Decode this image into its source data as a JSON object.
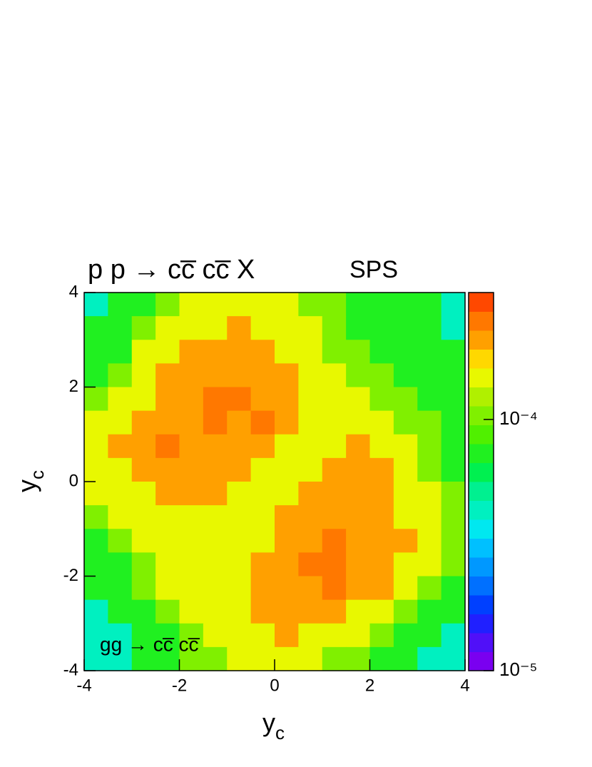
{
  "chart_data": {
    "type": "heatmap",
    "title": "p p → cc̅ cc̅ X",
    "subtitle": "SPS",
    "annotation": "gg → cc̅ cc̅",
    "x_label": {
      "base": "y",
      "sub": "c"
    },
    "y_label": {
      "base": "y",
      "sub": "c"
    },
    "xlim": [
      -4,
      4
    ],
    "ylim": [
      -4,
      4
    ],
    "xticks": [
      -4,
      -2,
      0,
      2,
      4
    ],
    "yticks": [
      -4,
      -2,
      0,
      2,
      4
    ],
    "xbins": [
      -4,
      -3.5,
      -3,
      -2.5,
      -2,
      -1.5,
      -1,
      -0.5,
      0,
      0.5,
      1,
      1.5,
      2,
      2.5,
      3,
      3.5,
      4
    ],
    "ybins": [
      4,
      3.5,
      3,
      2.5,
      2,
      1.5,
      1,
      0.5,
      0,
      -0.5,
      -1,
      -1.5,
      -2,
      -2.5,
      -3,
      -3.5,
      -4
    ],
    "zlim": [
      1e-05,
      0.00032
    ],
    "zlog": true,
    "zticks": [
      {
        "value": 1e-05,
        "label": "10⁻⁵"
      },
      {
        "value": 0.0001,
        "label": "10⁻⁴"
      }
    ],
    "palette": [
      "#7a00f0",
      "#5010f8",
      "#2020ff",
      "#0040ff",
      "#0070ff",
      "#0098ff",
      "#00c0ff",
      "#00e8f0",
      "#00f0c0",
      "#00f090",
      "#00f050",
      "#20f020",
      "#50f000",
      "#80f000",
      "#b0f000",
      "#e8f800",
      "#ffd800",
      "#ffa000",
      "#ff7800",
      "#ff4800"
    ],
    "z": [
      [
        4e-05,
        7e-05,
        7e-05,
        0.0001,
        0.00015,
        0.00015,
        0.00015,
        0.00015,
        0.00015,
        0.0001,
        0.0001,
        7e-05,
        7e-05,
        7e-05,
        7e-05,
        4e-05
      ],
      [
        7e-05,
        7e-05,
        0.0001,
        0.00015,
        0.00015,
        0.00015,
        0.00021,
        0.00015,
        0.00015,
        0.00015,
        0.0001,
        7e-05,
        7e-05,
        7e-05,
        7e-05,
        4e-05
      ],
      [
        7e-05,
        7e-05,
        0.00015,
        0.00015,
        0.00021,
        0.00021,
        0.00021,
        0.00021,
        0.00015,
        0.00015,
        0.0001,
        0.0001,
        7e-05,
        7e-05,
        7e-05,
        7e-05
      ],
      [
        7e-05,
        0.0001,
        0.00015,
        0.00021,
        0.00021,
        0.00021,
        0.00021,
        0.00021,
        0.00021,
        0.00015,
        0.00015,
        0.0001,
        0.0001,
        7e-05,
        7e-05,
        7e-05
      ],
      [
        0.0001,
        0.00015,
        0.00015,
        0.00021,
        0.00021,
        0.00026,
        0.00026,
        0.00021,
        0.00021,
        0.00015,
        0.00015,
        0.00015,
        0.0001,
        0.0001,
        7e-05,
        7e-05
      ],
      [
        0.00015,
        0.00015,
        0.00021,
        0.00021,
        0.00021,
        0.00026,
        0.00021,
        0.00026,
        0.00021,
        0.00015,
        0.00015,
        0.00015,
        0.00015,
        0.0001,
        0.0001,
        7e-05
      ],
      [
        0.00015,
        0.00021,
        0.00021,
        0.00026,
        0.00021,
        0.00021,
        0.00021,
        0.00021,
        0.00015,
        0.00015,
        0.00015,
        0.00021,
        0.00015,
        0.00015,
        0.0001,
        7e-05
      ],
      [
        0.00015,
        0.00015,
        0.00021,
        0.00021,
        0.00021,
        0.00021,
        0.00021,
        0.00015,
        0.00015,
        0.00015,
        0.00021,
        0.00021,
        0.00021,
        0.00015,
        0.0001,
        7e-05
      ],
      [
        0.00015,
        0.00015,
        0.00015,
        0.00021,
        0.00021,
        0.00021,
        0.00015,
        0.00015,
        0.00015,
        0.00021,
        0.00021,
        0.00021,
        0.00021,
        0.00015,
        0.00015,
        0.0001
      ],
      [
        0.0001,
        0.00015,
        0.00015,
        0.00015,
        0.00015,
        0.00015,
        0.00015,
        0.00015,
        0.00021,
        0.00021,
        0.00021,
        0.00021,
        0.00021,
        0.00015,
        0.00015,
        0.0001
      ],
      [
        7e-05,
        0.0001,
        0.00015,
        0.00015,
        0.00015,
        0.00015,
        0.00015,
        0.00015,
        0.00021,
        0.00021,
        0.00026,
        0.00021,
        0.00021,
        0.00021,
        0.00015,
        0.0001
      ],
      [
        7e-05,
        7e-05,
        0.0001,
        0.00015,
        0.00015,
        0.00015,
        0.00015,
        0.00021,
        0.00021,
        0.00026,
        0.00026,
        0.00021,
        0.00021,
        0.00015,
        0.00015,
        0.0001
      ],
      [
        7e-05,
        7e-05,
        0.0001,
        0.00015,
        0.00015,
        0.00015,
        0.00015,
        0.00021,
        0.00021,
        0.00021,
        0.00026,
        0.00021,
        0.00021,
        0.00015,
        0.0001,
        7e-05
      ],
      [
        4e-05,
        7e-05,
        7e-05,
        0.0001,
        0.00015,
        0.00015,
        0.00015,
        0.00021,
        0.00021,
        0.00021,
        0.00021,
        0.00015,
        0.00015,
        0.0001,
        7e-05,
        7e-05
      ],
      [
        4e-05,
        4e-05,
        7e-05,
        7e-05,
        0.0001,
        0.00015,
        0.00015,
        0.00015,
        0.00021,
        0.00015,
        0.00015,
        0.00015,
        0.0001,
        7e-05,
        7e-05,
        4e-05
      ],
      [
        4e-05,
        4e-05,
        7e-05,
        7e-05,
        0.0001,
        0.0001,
        0.00015,
        0.00015,
        0.00015,
        0.00015,
        0.0001,
        0.0001,
        7e-05,
        7e-05,
        4e-05,
        4e-05
      ]
    ]
  }
}
